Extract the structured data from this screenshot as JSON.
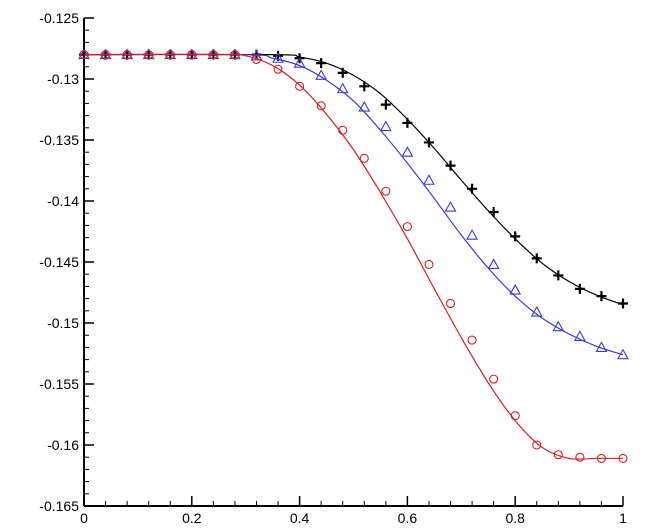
{
  "chart_data": {
    "type": "line",
    "title": "",
    "xlabel": "",
    "ylabel": "",
    "xlim": [
      0,
      1
    ],
    "ylim": [
      -0.165,
      -0.125
    ],
    "grid": false,
    "x_ticks": [
      0,
      0.2,
      0.4,
      0.6,
      0.8,
      1
    ],
    "x_tick_labels": [
      "0",
      "0.2",
      "0.4",
      "0.6",
      "0.8",
      "1"
    ],
    "y_ticks": [
      -0.165,
      -0.16,
      -0.155,
      -0.15,
      -0.145,
      -0.14,
      -0.135,
      -0.13,
      -0.125
    ],
    "y_tick_labels": [
      "-0.165",
      "-0.16",
      "-0.155",
      "-0.15",
      "-0.145",
      "-0.14",
      "-0.135",
      "-0.13",
      "-0.125"
    ],
    "series": [
      {
        "color": "#000000",
        "marker": "plus",
        "line_points": [
          {
            "x": 0,
            "y": -0.128
          },
          {
            "x": 0.35,
            "y": -0.128
          },
          {
            "x": 0.4,
            "y": -0.1282
          },
          {
            "x": 0.45,
            "y": -0.1287
          },
          {
            "x": 0.5,
            "y": -0.1297
          },
          {
            "x": 0.55,
            "y": -0.1312
          },
          {
            "x": 0.6,
            "y": -0.1333
          },
          {
            "x": 0.65,
            "y": -0.1357
          },
          {
            "x": 0.7,
            "y": -0.1383
          },
          {
            "x": 0.75,
            "y": -0.1408
          },
          {
            "x": 0.8,
            "y": -0.1431
          },
          {
            "x": 0.85,
            "y": -0.1451
          },
          {
            "x": 0.9,
            "y": -0.1466
          },
          {
            "x": 0.95,
            "y": -0.1477
          },
          {
            "x": 1.0,
            "y": -0.1485
          }
        ],
        "marker_points": [
          {
            "x": 0,
            "y": -0.128
          },
          {
            "x": 0.04,
            "y": -0.128
          },
          {
            "x": 0.08,
            "y": -0.128
          },
          {
            "x": 0.12,
            "y": -0.128
          },
          {
            "x": 0.16,
            "y": -0.128
          },
          {
            "x": 0.2,
            "y": -0.128
          },
          {
            "x": 0.24,
            "y": -0.128
          },
          {
            "x": 0.28,
            "y": -0.128
          },
          {
            "x": 0.32,
            "y": -0.128
          },
          {
            "x": 0.36,
            "y": -0.1281
          },
          {
            "x": 0.4,
            "y": -0.1283
          },
          {
            "x": 0.44,
            "y": -0.1287
          },
          {
            "x": 0.48,
            "y": -0.1295
          },
          {
            "x": 0.52,
            "y": -0.1306
          },
          {
            "x": 0.56,
            "y": -0.1321
          },
          {
            "x": 0.6,
            "y": -0.1336
          },
          {
            "x": 0.64,
            "y": -0.1352
          },
          {
            "x": 0.68,
            "y": -0.1371
          },
          {
            "x": 0.72,
            "y": -0.139
          },
          {
            "x": 0.76,
            "y": -0.1409
          },
          {
            "x": 0.8,
            "y": -0.1429
          },
          {
            "x": 0.84,
            "y": -0.1447
          },
          {
            "x": 0.88,
            "y": -0.1461
          },
          {
            "x": 0.92,
            "y": -0.1472
          },
          {
            "x": 0.96,
            "y": -0.1478
          },
          {
            "x": 1.0,
            "y": -0.1484
          }
        ]
      },
      {
        "color": "#3a3ae0",
        "marker": "triangle",
        "line_points": [
          {
            "x": 0,
            "y": -0.128
          },
          {
            "x": 0.3,
            "y": -0.128
          },
          {
            "x": 0.35,
            "y": -0.1283
          },
          {
            "x": 0.4,
            "y": -0.1289
          },
          {
            "x": 0.45,
            "y": -0.1301
          },
          {
            "x": 0.5,
            "y": -0.1318
          },
          {
            "x": 0.55,
            "y": -0.1342
          },
          {
            "x": 0.6,
            "y": -0.1369
          },
          {
            "x": 0.65,
            "y": -0.1398
          },
          {
            "x": 0.7,
            "y": -0.1428
          },
          {
            "x": 0.75,
            "y": -0.1455
          },
          {
            "x": 0.8,
            "y": -0.1478
          },
          {
            "x": 0.85,
            "y": -0.1496
          },
          {
            "x": 0.9,
            "y": -0.1509
          },
          {
            "x": 0.95,
            "y": -0.1519
          },
          {
            "x": 1.0,
            "y": -0.1526
          }
        ],
        "marker_points": [
          {
            "x": 0,
            "y": -0.128
          },
          {
            "x": 0.04,
            "y": -0.128
          },
          {
            "x": 0.08,
            "y": -0.128
          },
          {
            "x": 0.12,
            "y": -0.128
          },
          {
            "x": 0.16,
            "y": -0.128
          },
          {
            "x": 0.2,
            "y": -0.128
          },
          {
            "x": 0.24,
            "y": -0.128
          },
          {
            "x": 0.28,
            "y": -0.128
          },
          {
            "x": 0.32,
            "y": -0.1281
          },
          {
            "x": 0.36,
            "y": -0.1283
          },
          {
            "x": 0.4,
            "y": -0.1287
          },
          {
            "x": 0.44,
            "y": -0.1297
          },
          {
            "x": 0.48,
            "y": -0.1308
          },
          {
            "x": 0.52,
            "y": -0.1323
          },
          {
            "x": 0.56,
            "y": -0.1339
          },
          {
            "x": 0.6,
            "y": -0.136
          },
          {
            "x": 0.64,
            "y": -0.1383
          },
          {
            "x": 0.68,
            "y": -0.1405
          },
          {
            "x": 0.72,
            "y": -0.1428
          },
          {
            "x": 0.76,
            "y": -0.1452
          },
          {
            "x": 0.8,
            "y": -0.1473
          },
          {
            "x": 0.84,
            "y": -0.1491
          },
          {
            "x": 0.88,
            "y": -0.1503
          },
          {
            "x": 0.92,
            "y": -0.1511
          },
          {
            "x": 0.96,
            "y": -0.152
          },
          {
            "x": 1.0,
            "y": -0.1526
          }
        ]
      },
      {
        "color": "#d42020",
        "marker": "circle",
        "line_points": [
          {
            "x": 0,
            "y": -0.128
          },
          {
            "x": 0.25,
            "y": -0.128
          },
          {
            "x": 0.3,
            "y": -0.1281
          },
          {
            "x": 0.35,
            "y": -0.1289
          },
          {
            "x": 0.4,
            "y": -0.1305
          },
          {
            "x": 0.45,
            "y": -0.1329
          },
          {
            "x": 0.5,
            "y": -0.1358
          },
          {
            "x": 0.55,
            "y": -0.1393
          },
          {
            "x": 0.6,
            "y": -0.1431
          },
          {
            "x": 0.65,
            "y": -0.1472
          },
          {
            "x": 0.7,
            "y": -0.1512
          },
          {
            "x": 0.75,
            "y": -0.1549
          },
          {
            "x": 0.8,
            "y": -0.158
          },
          {
            "x": 0.85,
            "y": -0.1602
          },
          {
            "x": 0.9,
            "y": -0.1611
          },
          {
            "x": 0.95,
            "y": -0.1611
          },
          {
            "x": 1.0,
            "y": -0.1611
          }
        ],
        "marker_points": [
          {
            "x": 0,
            "y": -0.128
          },
          {
            "x": 0.04,
            "y": -0.128
          },
          {
            "x": 0.08,
            "y": -0.128
          },
          {
            "x": 0.12,
            "y": -0.128
          },
          {
            "x": 0.16,
            "y": -0.128
          },
          {
            "x": 0.2,
            "y": -0.128
          },
          {
            "x": 0.24,
            "y": -0.128
          },
          {
            "x": 0.28,
            "y": -0.128
          },
          {
            "x": 0.32,
            "y": -0.1284
          },
          {
            "x": 0.36,
            "y": -0.1292
          },
          {
            "x": 0.4,
            "y": -0.1306
          },
          {
            "x": 0.44,
            "y": -0.1322
          },
          {
            "x": 0.48,
            "y": -0.1342
          },
          {
            "x": 0.52,
            "y": -0.1365
          },
          {
            "x": 0.56,
            "y": -0.1392
          },
          {
            "x": 0.6,
            "y": -0.1421
          },
          {
            "x": 0.64,
            "y": -0.1452
          },
          {
            "x": 0.68,
            "y": -0.1484
          },
          {
            "x": 0.72,
            "y": -0.1514
          },
          {
            "x": 0.76,
            "y": -0.1546
          },
          {
            "x": 0.8,
            "y": -0.1576
          },
          {
            "x": 0.84,
            "y": -0.16
          },
          {
            "x": 0.88,
            "y": -0.1608
          },
          {
            "x": 0.92,
            "y": -0.161
          },
          {
            "x": 0.96,
            "y": -0.1611
          },
          {
            "x": 1.0,
            "y": -0.1611
          }
        ]
      }
    ]
  }
}
